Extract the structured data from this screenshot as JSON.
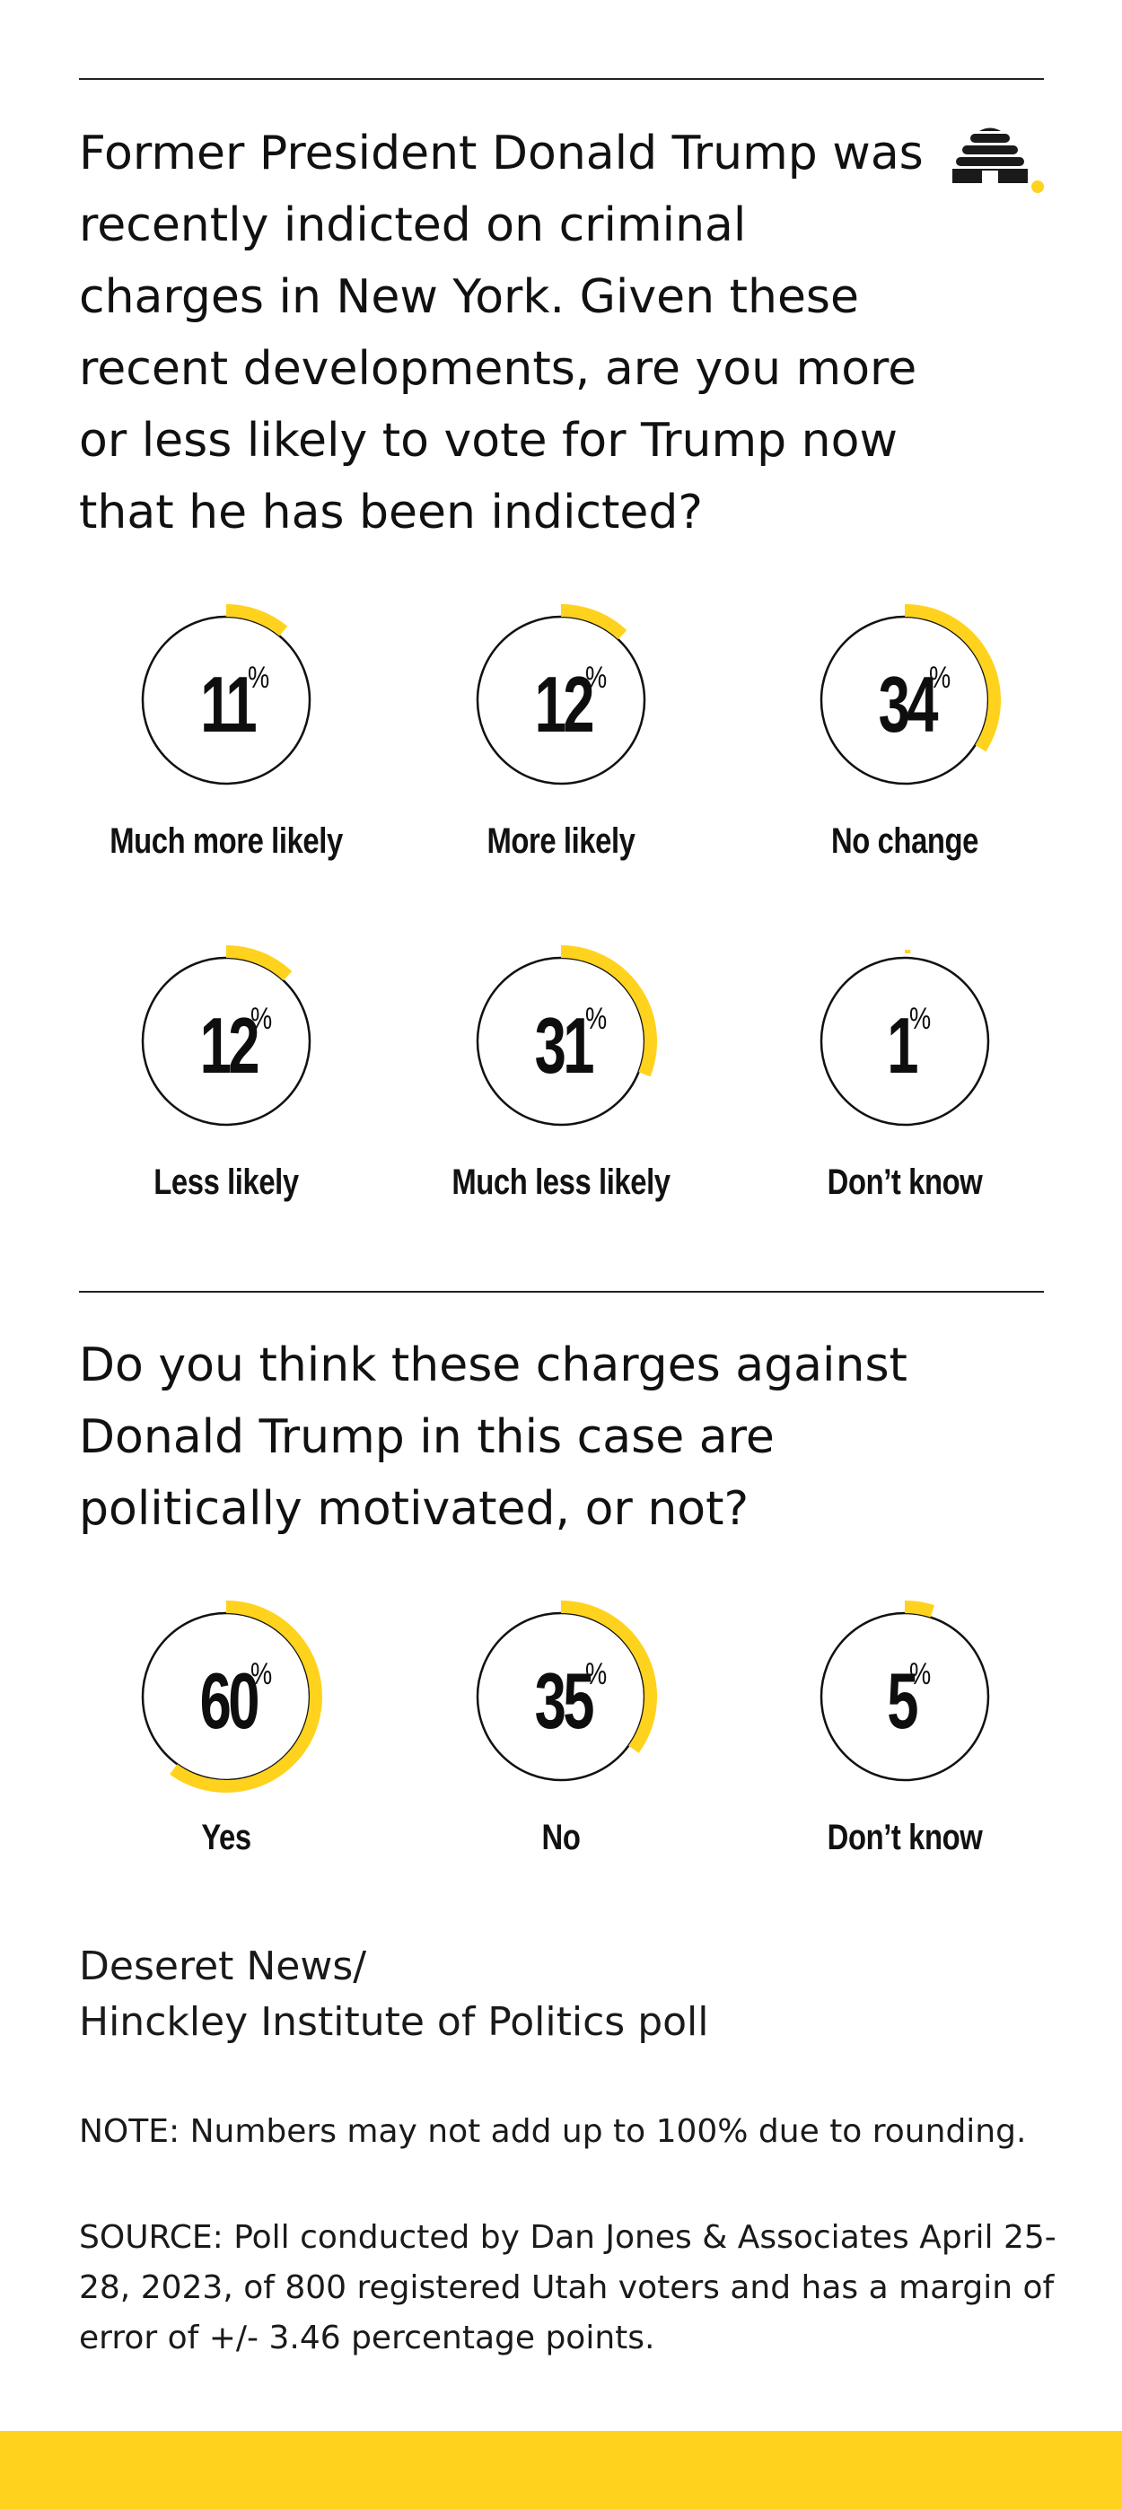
{
  "colors": {
    "accent": "#FFD21E",
    "ink": "#111111",
    "circle_stroke": "#111111",
    "background": "#FFFFFF",
    "footer_bar": "#FFD21E"
  },
  "logo": {
    "icon": "beehive-icon"
  },
  "questions": [
    {
      "text": "Former President Donald Trump was recently indicted on criminal charges in New York. Given these recent developments, are you more or less likely to vote for Trump now that he has been indicted?"
    },
    {
      "text": "Do you think these charges against Donald Trump in this case are politically motivated, or not?"
    }
  ],
  "chart_data": [
    {
      "type": "pie",
      "title": "Former President Donald Trump was recently indicted on criminal charges in New York. Given these recent developments, are you more or less likely to vote for Trump now that he has been indicted?",
      "unit": "%",
      "categories": [
        "Much more likely",
        "More likely",
        "No change",
        "Less likely",
        "Much less likely",
        "Don’t know"
      ],
      "values": [
        11,
        12,
        34,
        12,
        31,
        1
      ]
    },
    {
      "type": "pie",
      "title": "Do you think these charges against Donald Trump in this case are politically motivated, or not?",
      "unit": "%",
      "categories": [
        "Yes",
        "No",
        "Don’t know"
      ],
      "values": [
        60,
        35,
        5
      ]
    }
  ],
  "credit": "Deseret News/\nHinckley Institute of Politics poll",
  "note": "NOTE: Numbers may not add up to 100% due to rounding.",
  "source": "SOURCE: Poll conducted by Dan Jones & Associates April 25-28, 2023, of 800 registered Utah voters and has a margin of error of +/- 3.46 percentage points."
}
